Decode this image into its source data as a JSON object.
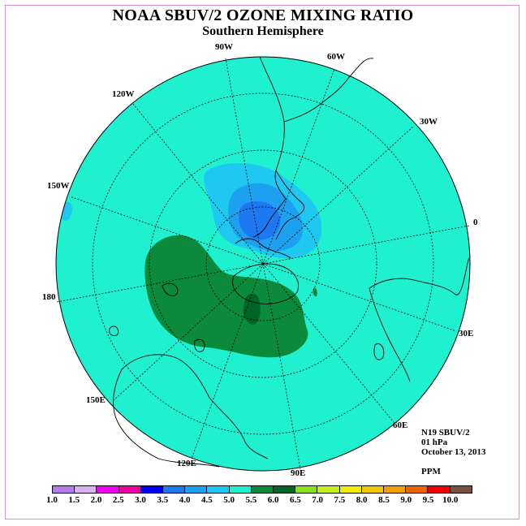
{
  "title": "NOAA SBUV/2 OZONE MIXING RATIO",
  "subtitle": "Southern Hemisphere",
  "longitude_labels": {
    "lon_90w": "90W",
    "lon_60w": "60W",
    "lon_30w": "30W",
    "lon_0": "0",
    "lon_30e": "30E",
    "lon_60e": "60E",
    "lon_90e": "90E",
    "lon_120e": "120E",
    "lon_150e": "150E",
    "lon_180": "180",
    "lon_150w": "150W",
    "lon_120w": "120W"
  },
  "info": {
    "instrument": "N19 SBUV/2",
    "pressure_level": "01 hPa",
    "date": "October 13, 2013",
    "units": "PPM"
  },
  "legend": {
    "ticks": [
      "1.0",
      "1.5",
      "2.0",
      "2.5",
      "3.0",
      "3.5",
      "4.0",
      "4.5",
      "5.0",
      "5.5",
      "6.0",
      "6.5",
      "7.0",
      "7.5",
      "8.0",
      "8.5",
      "9.0",
      "9.5",
      "10.0"
    ],
    "colors": [
      "#b57cf0",
      "#d9b0f0",
      "#f000f0",
      "#f000a0",
      "#0000f0",
      "#1e78f0",
      "#1ea0f0",
      "#1ec8f0",
      "#1ef0d0",
      "#0a8a3a",
      "#006428",
      "#8ce01e",
      "#c8f01e",
      "#f0f000",
      "#f0c800",
      "#f0a000",
      "#f06400",
      "#f00000",
      "#7a5040"
    ]
  },
  "colors": {
    "background_level": "#1ef0d0",
    "low_region": "#1ec8f0",
    "lower_region": "#1ea0f0",
    "lowest_region": "#1e78f0",
    "high_region": "#0a8a3a",
    "highest_region": "#006428"
  }
}
